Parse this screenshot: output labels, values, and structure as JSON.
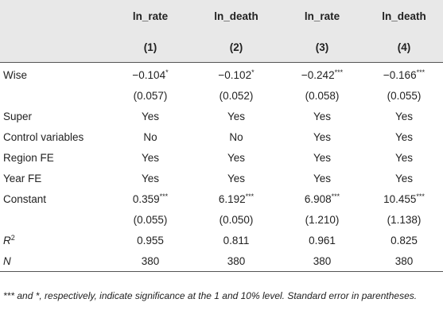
{
  "header": {
    "columns": [
      {
        "name": "ln_rate",
        "number": "(1)"
      },
      {
        "name": "ln_death",
        "number": "(2)"
      },
      {
        "name": "ln_rate",
        "number": "(3)"
      },
      {
        "name": "ln_death",
        "number": "(4)"
      }
    ]
  },
  "rows": [
    {
      "label": "Wise",
      "cells": [
        {
          "text": "−0.104",
          "sup": "*"
        },
        {
          "text": "−0.102",
          "sup": "*"
        },
        {
          "text": "−0.242",
          "sup": "***"
        },
        {
          "text": "−0.166",
          "sup": "***"
        }
      ]
    },
    {
      "cells": [
        "(0.057)",
        "(0.052)",
        "(0.058)",
        "(0.055)"
      ]
    },
    {
      "label": "Super",
      "cells": [
        "Yes",
        "Yes",
        "Yes",
        "Yes"
      ]
    },
    {
      "label": "Control variables",
      "cells": [
        "No",
        "No",
        "Yes",
        "Yes"
      ]
    },
    {
      "label": "Region FE",
      "cells": [
        "Yes",
        "Yes",
        "Yes",
        "Yes"
      ]
    },
    {
      "label": "Year FE",
      "cells": [
        "Yes",
        "Yes",
        "Yes",
        "Yes"
      ]
    },
    {
      "label": "Constant",
      "cells": [
        {
          "text": "0.359",
          "sup": "***"
        },
        {
          "text": "6.192",
          "sup": "***"
        },
        {
          "text": "6.908",
          "sup": "***"
        },
        {
          "text": "10.455",
          "sup": "***"
        }
      ]
    },
    {
      "cells": [
        "(0.055)",
        "(0.050)",
        "(1.210)",
        "(1.138)"
      ]
    },
    {
      "label": {
        "text": "R",
        "sup": "2"
      },
      "cells": [
        "0.955",
        "0.811",
        "0.961",
        "0.825"
      ]
    },
    {
      "label": "N",
      "cells": [
        "380",
        "380",
        "380",
        "380"
      ]
    }
  ],
  "footnote": "*** and *, respectively, indicate significance at the 1 and 10% level. Standard error in parentheses."
}
